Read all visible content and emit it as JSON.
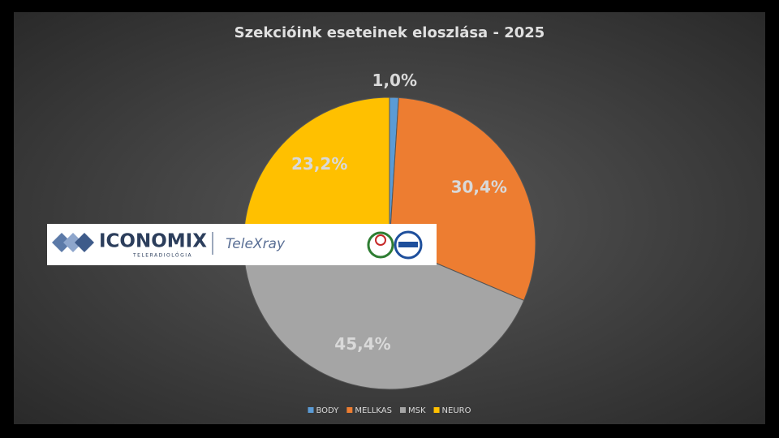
{
  "chart_data": {
    "type": "pie",
    "title": "Szekcióink eseteinek eloszlása - 2025",
    "categories": [
      "BODY",
      "MELLKAS",
      "MSK",
      "NEURO"
    ],
    "values": [
      1.0,
      30.4,
      45.4,
      23.2
    ],
    "value_labels": [
      "1,0%",
      "30,4%",
      "45,4%",
      "23,2%"
    ],
    "colors": [
      "#5b9bd5",
      "#ed7d31",
      "#a5a5a5",
      "#ffc000"
    ],
    "legend": "bottom"
  },
  "overlay": {
    "brand": "ICONOMIX",
    "tagline": "TELERADIOLÓGIA",
    "product": "TeleXray"
  }
}
